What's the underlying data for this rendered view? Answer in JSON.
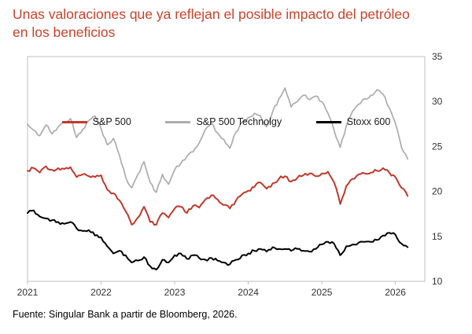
{
  "title": {
    "line1": "Unas valoraciones que ya reflejan el posible impacto del petróleo",
    "line2": "en los beneficios",
    "color": "#C8432B"
  },
  "source": "Fuente: Singular Bank a partir de Bloomberg, 2026.",
  "chart_data": {
    "type": "line",
    "title": "Unas valoraciones que ya reflejan el posible impacto del petróleo en los beneficios",
    "xlabel": "",
    "ylabel": "",
    "y_axis_side": "right",
    "grid": false,
    "legend_position": "top",
    "x_domain": [
      2021,
      2026.4
    ],
    "ylim": [
      10,
      35
    ],
    "x_ticks": [
      2021,
      2022,
      2023,
      2024,
      2025,
      2026
    ],
    "y_ticks": [
      10,
      15,
      20,
      25,
      30,
      35
    ],
    "x_start": 2021.0,
    "x_step": 0.0833333,
    "plot_border_color": "#BFBFBF",
    "series": [
      {
        "name": "S&P 500",
        "color": "#C0392B",
        "width": 2,
        "values": [
          22.3,
          22.6,
          22.1,
          22.8,
          22.4,
          22.6,
          22.5,
          22.7,
          21.6,
          21.9,
          21.7,
          21.6,
          21.8,
          20.2,
          19.8,
          19.0,
          17.8,
          16.3,
          17.1,
          18.3,
          16.6,
          16.3,
          17.6,
          17.1,
          18.1,
          18.3,
          17.6,
          18.4,
          18.2,
          19.1,
          19.6,
          19.1,
          18.5,
          18.1,
          19.0,
          19.7,
          20.1,
          20.5,
          21.0,
          20.3,
          20.9,
          21.4,
          21.7,
          21.1,
          21.5,
          21.8,
          22.0,
          21.7,
          22.0,
          22.2,
          21.0,
          18.6,
          20.6,
          21.4,
          21.9,
          22.0,
          22.1,
          22.3,
          22.6,
          22.1,
          21.6,
          20.4,
          19.5
        ]
      },
      {
        "name": "S&P 500 Technolgy",
        "color": "#ACACAC",
        "width": 1.7,
        "values": [
          27.5,
          26.8,
          26.2,
          27.4,
          26.4,
          27.2,
          27.7,
          28.1,
          26.0,
          26.9,
          27.9,
          28.4,
          27.0,
          25.2,
          25.9,
          24.0,
          21.6,
          20.4,
          21.9,
          23.3,
          21.0,
          19.9,
          21.9,
          20.8,
          22.4,
          23.1,
          23.9,
          24.4,
          25.4,
          26.9,
          27.6,
          26.5,
          25.8,
          24.8,
          26.6,
          27.7,
          28.2,
          28.7,
          28.4,
          27.2,
          28.9,
          30.3,
          31.5,
          29.4,
          30.0,
          30.7,
          30.2,
          30.6,
          30.0,
          28.7,
          26.8,
          24.9,
          27.3,
          28.9,
          29.7,
          30.3,
          30.7,
          31.3,
          30.8,
          29.3,
          27.6,
          24.9,
          23.6
        ]
      },
      {
        "name": "Stoxx 600",
        "color": "#000000",
        "width": 2,
        "values": [
          17.6,
          17.9,
          17.2,
          17.0,
          16.8,
          16.6,
          16.4,
          16.6,
          15.9,
          15.6,
          15.7,
          15.1,
          14.9,
          13.9,
          13.1,
          13.4,
          12.9,
          12.1,
          12.3,
          12.7,
          11.7,
          11.3,
          12.4,
          12.1,
          12.9,
          13.1,
          12.5,
          12.9,
          12.6,
          12.4,
          12.6,
          12.3,
          12.1,
          11.9,
          12.4,
          12.9,
          13.1,
          13.4,
          13.6,
          13.3,
          13.8,
          13.6,
          13.6,
          13.4,
          13.6,
          13.4,
          13.3,
          13.6,
          14.1,
          14.4,
          14.2,
          12.9,
          13.9,
          14.1,
          14.3,
          14.4,
          14.4,
          14.6,
          15.1,
          15.4,
          15.2,
          14.2,
          13.8
        ]
      }
    ]
  }
}
